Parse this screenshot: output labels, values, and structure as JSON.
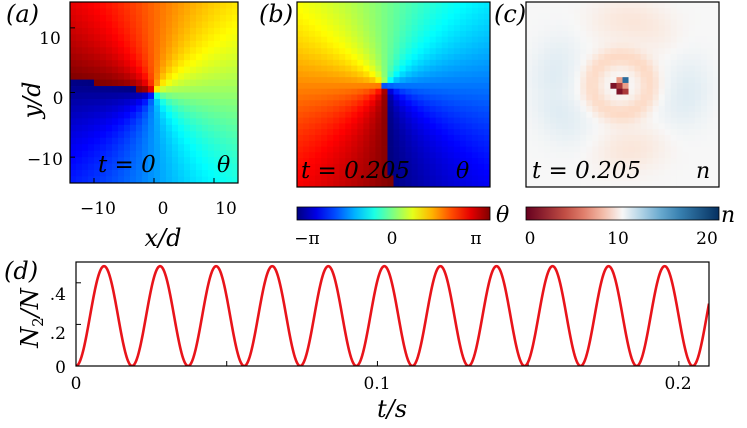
{
  "chart_data": [
    {
      "type": "heatmap",
      "panel_label": "(a)",
      "time_label": "t = 0",
      "field_symbol": "θ",
      "field": "phase",
      "xlabel": "x/d",
      "ylabel": "y/d",
      "xticks": [
        "−10",
        "0",
        "10"
      ],
      "yticks": [
        "10",
        "0",
        "−10"
      ],
      "xlim": [
        -14,
        14
      ],
      "ylim": [
        -14,
        14
      ],
      "colorbar": "phase"
    },
    {
      "type": "heatmap",
      "panel_label": "(b)",
      "time_label": "t = 0.205",
      "field_symbol": "θ",
      "field": "phase",
      "colorbar_ticks": [
        "−π",
        "0",
        "π"
      ],
      "colorbar_symbol": "θ",
      "colorbar": "phase"
    },
    {
      "type": "heatmap",
      "panel_label": "(c)",
      "time_label": "t = 0.205",
      "field_symbol": "n",
      "field": "density",
      "colorbar_ticks": [
        "0",
        "10",
        "20"
      ],
      "colorbar_symbol": "n",
      "colorbar": "density"
    },
    {
      "type": "line",
      "panel_label": "(d)",
      "xlabel": "t/s",
      "ylabel": "N2/N",
      "ylabel_main": "N",
      "ylabel_sub": "2",
      "ylabel_rest": "/N",
      "xticks": [
        "0",
        "0.1",
        "0.2"
      ],
      "yticks": [
        ".4",
        ".2",
        "0"
      ],
      "xlim": [
        0,
        0.21
      ],
      "ylim": [
        0,
        0.5
      ],
      "period": 0.0186,
      "amplitude": 0.48,
      "series": [
        {
          "color": "#e8141a"
        }
      ]
    }
  ],
  "colors": {
    "line": "#e8141a",
    "axis": "#000000"
  }
}
